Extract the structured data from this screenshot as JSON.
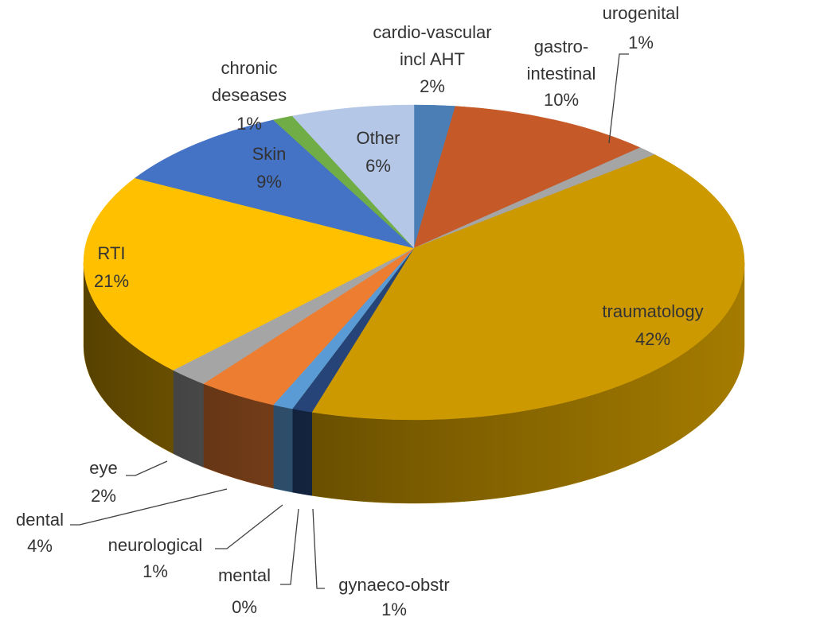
{
  "chart_data": {
    "type": "pie3d",
    "categories": [
      "cardio-vascular\nincl AHT",
      "gastro-\nintestinal",
      "urogenital",
      "traumatology",
      "gynaeco-obstr",
      "mental",
      "neurological",
      "dental",
      "eye",
      "RTI",
      "Skin",
      "chronic\ndeseases",
      "Other"
    ],
    "values": [
      2,
      10,
      1,
      42,
      1,
      0,
      1,
      4,
      2,
      21,
      9,
      1,
      6
    ],
    "value_labels": [
      "2%",
      "10%",
      "1%",
      "42%",
      "1%",
      "0%",
      "1%",
      "4%",
      "2%",
      "21%",
      "9%",
      "1%",
      "6%"
    ],
    "colors": [
      "#4a7eb4",
      "#c55a28",
      "#a5a5a5",
      "#cc9900",
      "#264478",
      "#5a8a30",
      "#5b9bd5",
      "#ed7d31",
      "#a5a5a5",
      "#ffc000",
      "#4472c4",
      "#70ad47",
      "#b4c7e7"
    ]
  }
}
